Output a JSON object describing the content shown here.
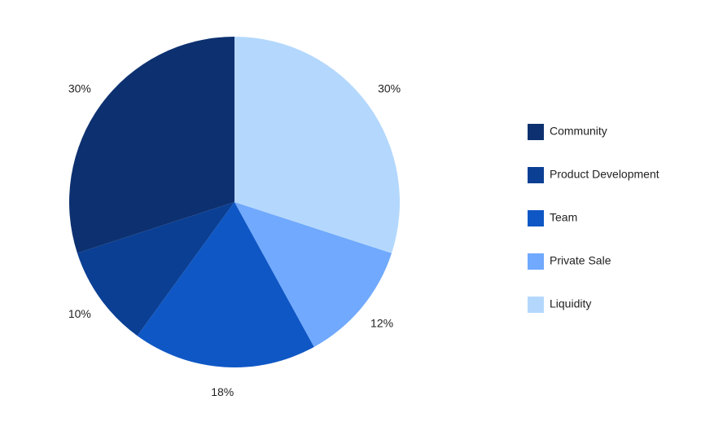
{
  "chart_data": {
    "type": "pie",
    "categories": [
      "Community",
      "Product Development",
      "Team",
      "Private Sale",
      "Liquidity"
    ],
    "values": [
      30,
      10,
      18,
      12,
      30
    ],
    "value_labels": [
      "30%",
      "10%",
      "18%",
      "12%",
      "30%"
    ],
    "colors": [
      "#0d3170",
      "#0a3f94",
      "#0f57c5",
      "#70a9fd",
      "#b4d8fd"
    ],
    "legend": "right"
  }
}
